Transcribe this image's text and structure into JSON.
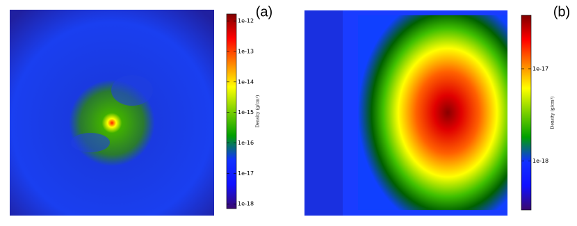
{
  "chart_data": [
    {
      "type": "heatmap",
      "panel_label": "(a)",
      "colorbar_label": "Density (g/cm³)",
      "log": true,
      "colormap": [
        "#3a0a6e",
        "#1010ff",
        "#1030ff",
        "#00a000",
        "#7ad000",
        "#ffff00",
        "#ff8000",
        "#ff0000",
        "#800000"
      ],
      "ylim": [
        7e-19,
        1.7e-12
      ],
      "yticks": [
        {
          "value": 1e-18,
          "label": "1e-18"
        },
        {
          "value": 1e-17,
          "label": "1e-17"
        },
        {
          "value": 1e-16,
          "label": "1e-16"
        },
        {
          "value": 1e-15,
          "label": "1e-15"
        },
        {
          "value": 1e-14,
          "label": "1e-14"
        },
        {
          "value": 1e-13,
          "label": "1e-13"
        },
        {
          "value": 1e-12,
          "label": "1e-12"
        }
      ]
    },
    {
      "type": "heatmap",
      "panel_label": "(b)",
      "colorbar_label": "Density (g/cm³)",
      "log": true,
      "colormap": [
        "#3a0a6e",
        "#1010ff",
        "#1030ff",
        "#00a000",
        "#7ad000",
        "#ffff00",
        "#ff8000",
        "#ff0000",
        "#800000"
      ],
      "ylim": [
        2.95e-19,
        3.8e-17
      ],
      "yticks": [
        {
          "value": 1e-18,
          "label": "1e-18"
        },
        {
          "value": 1e-17,
          "label": "1e-17"
        }
      ]
    }
  ]
}
